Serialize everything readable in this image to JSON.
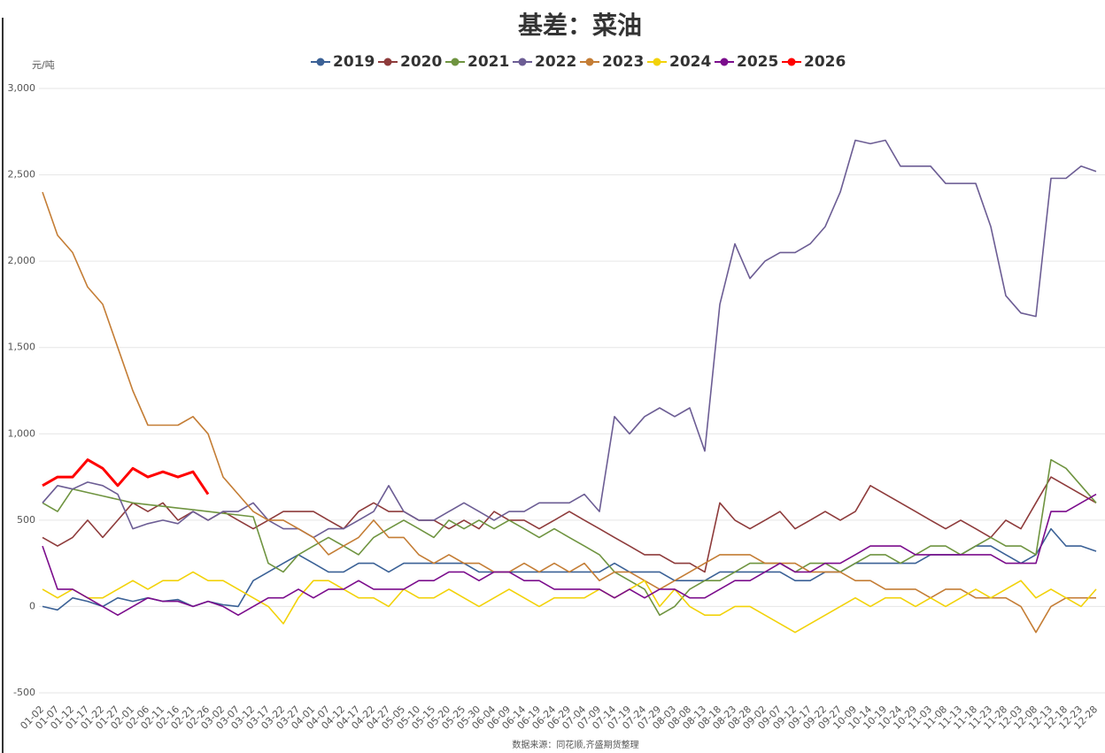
{
  "chart_data": {
    "type": "line",
    "title": "基差：菜油",
    "y_label": "元/吨",
    "source": "数据来源：同花顺,齐盛期货整理",
    "categories": [
      "01-02",
      "01-07",
      "01-12",
      "01-17",
      "01-22",
      "01-27",
      "02-01",
      "02-06",
      "02-11",
      "02-16",
      "02-21",
      "02-26",
      "03-02",
      "03-07",
      "03-12",
      "03-17",
      "03-22",
      "03-27",
      "04-01",
      "04-07",
      "04-12",
      "04-17",
      "04-22",
      "04-27",
      "05-05",
      "05-10",
      "05-15",
      "05-20",
      "05-25",
      "05-30",
      "06-04",
      "06-09",
      "06-14",
      "06-19",
      "06-24",
      "06-29",
      "07-04",
      "07-09",
      "07-14",
      "07-19",
      "07-24",
      "07-29",
      "08-03",
      "08-08",
      "08-13",
      "08-18",
      "08-23",
      "08-28",
      "09-02",
      "09-07",
      "09-12",
      "09-17",
      "09-22",
      "09-27",
      "10-09",
      "10-14",
      "10-19",
      "10-24",
      "10-29",
      "11-03",
      "11-08",
      "11-13",
      "11-18",
      "11-23",
      "11-28",
      "12-03",
      "12-08",
      "12-13",
      "12-18",
      "12-23",
      "12-28"
    ],
    "ylim": [
      -500,
      3000
    ],
    "yticks": [
      -500,
      0,
      500,
      {
        "value": 1000,
        "label": "1,000"
      },
      {
        "value": 1500,
        "label": "1,500"
      },
      {
        "value": 2000,
        "label": "2,000"
      },
      {
        "value": 2500,
        "label": "2,500"
      },
      {
        "value": 3000,
        "label": "3,000"
      }
    ],
    "grid": true,
    "legend": "top",
    "series": [
      {
        "name": "2019",
        "color": "#3b6196",
        "values": [
          0,
          -20,
          50,
          30,
          0,
          50,
          30,
          50,
          30,
          40,
          0,
          30,
          10,
          0,
          150,
          200,
          250,
          300,
          250,
          200,
          200,
          250,
          250,
          200,
          250,
          250,
          250,
          250,
          250,
          200,
          200,
          200,
          200,
          200,
          200,
          200,
          200,
          200,
          250,
          200,
          200,
          200,
          150,
          150,
          150,
          200,
          200,
          200,
          200,
          200,
          150,
          150,
          200,
          200,
          250,
          250,
          250,
          250,
          250,
          300,
          300,
          300,
          350,
          350,
          300,
          250,
          300,
          450,
          350,
          350,
          320
        ]
      },
      {
        "name": "2020",
        "color": "#8e3b3b",
        "values": [
          400,
          350,
          400,
          500,
          400,
          500,
          600,
          550,
          600,
          500,
          550,
          500,
          550,
          500,
          450,
          500,
          550,
          550,
          550,
          500,
          450,
          550,
          600,
          550,
          550,
          500,
          500,
          450,
          500,
          450,
          550,
          500,
          500,
          450,
          500,
          550,
          500,
          450,
          400,
          350,
          300,
          300,
          250,
          250,
          200,
          600,
          500,
          450,
          500,
          550,
          450,
          500,
          550,
          500,
          550,
          700,
          650,
          600,
          550,
          500,
          450,
          500,
          450,
          400,
          500,
          450,
          600,
          750,
          700,
          650,
          600
        ]
      },
      {
        "name": "2021",
        "color": "#6f9440",
        "values": [
          600,
          550,
          680,
          660,
          640,
          620,
          600,
          590,
          580,
          570,
          560,
          550,
          540,
          530,
          520,
          250,
          200,
          300,
          350,
          400,
          350,
          300,
          400,
          450,
          500,
          450,
          400,
          500,
          450,
          500,
          450,
          500,
          450,
          400,
          450,
          400,
          350,
          300,
          200,
          150,
          100,
          -50,
          0,
          100,
          150,
          150,
          200,
          250,
          250,
          250,
          200,
          250,
          250,
          200,
          250,
          300,
          300,
          250,
          300,
          350,
          350,
          300,
          350,
          400,
          350,
          350,
          300,
          850,
          800,
          700,
          600
        ]
      },
      {
        "name": "2022",
        "color": "#6c5d94",
        "values": [
          600,
          700,
          680,
          720,
          700,
          650,
          450,
          480,
          500,
          480,
          550,
          500,
          550,
          550,
          600,
          500,
          450,
          450,
          400,
          450,
          450,
          500,
          550,
          700,
          550,
          500,
          500,
          550,
          600,
          550,
          500,
          550,
          550,
          600,
          600,
          600,
          650,
          550,
          1100,
          1000,
          1100,
          1150,
          1100,
          1150,
          900,
          1750,
          2100,
          1900,
          2000,
          2050,
          2050,
          2100,
          2200,
          2400,
          2700,
          2680,
          2700,
          2550,
          2550,
          2550,
          2450,
          2450,
          2450,
          2200,
          1800,
          1700,
          1680,
          2480,
          2480,
          2550,
          2520
        ]
      },
      {
        "name": "2023",
        "color": "#c47d35",
        "values": [
          2400,
          2150,
          2050,
          1850,
          1750,
          1500,
          1250,
          1050,
          1050,
          1050,
          1100,
          1000,
          750,
          650,
          550,
          500,
          500,
          450,
          400,
          300,
          350,
          400,
          500,
          400,
          400,
          300,
          250,
          300,
          250,
          250,
          200,
          200,
          250,
          200,
          250,
          200,
          250,
          150,
          200,
          200,
          150,
          100,
          150,
          200,
          250,
          300,
          300,
          300,
          250,
          250,
          250,
          200,
          200,
          200,
          150,
          150,
          100,
          100,
          100,
          50,
          100,
          100,
          50,
          50,
          50,
          0,
          -150,
          0,
          50,
          50,
          50
        ]
      },
      {
        "name": "2024",
        "color": "#f2d20a",
        "values": [
          100,
          50,
          100,
          50,
          50,
          100,
          150,
          100,
          150,
          150,
          200,
          150,
          150,
          100,
          50,
          0,
          -100,
          50,
          150,
          150,
          100,
          50,
          50,
          0,
          100,
          50,
          50,
          100,
          50,
          0,
          50,
          100,
          50,
          0,
          50,
          50,
          50,
          100,
          50,
          100,
          150,
          0,
          100,
          0,
          -50,
          -50,
          0,
          0,
          -50,
          -100,
          -150,
          -100,
          -50,
          0,
          50,
          0,
          50,
          50,
          0,
          50,
          0,
          50,
          100,
          50,
          100,
          150,
          50,
          100,
          50,
          0,
          100
        ]
      },
      {
        "name": "2025",
        "color": "#7b0d8c",
        "values": [
          350,
          100,
          100,
          50,
          0,
          -50,
          0,
          50,
          30,
          30,
          0,
          30,
          0,
          -50,
          0,
          50,
          50,
          100,
          50,
          100,
          100,
          150,
          100,
          100,
          100,
          150,
          150,
          200,
          200,
          150,
          200,
          200,
          150,
          150,
          100,
          100,
          100,
          100,
          50,
          100,
          50,
          100,
          100,
          50,
          50,
          100,
          150,
          150,
          200,
          250,
          200,
          200,
          250,
          250,
          300,
          350,
          350,
          350,
          300,
          300,
          300,
          300,
          300,
          300,
          250,
          250,
          250,
          550,
          550,
          600,
          650
        ]
      },
      {
        "name": "2026",
        "color": "#ff0000",
        "values": [
          700,
          750,
          750,
          850,
          800,
          700,
          800,
          750,
          780,
          750,
          780,
          650,
          null,
          null,
          null,
          null,
          null,
          null,
          null,
          null,
          null,
          null,
          null,
          null,
          null,
          null,
          null,
          null,
          null,
          null,
          null,
          null,
          null,
          null,
          null,
          null,
          null,
          null,
          null,
          null,
          null,
          null,
          null,
          null,
          null,
          null,
          null,
          null,
          null,
          null,
          null,
          null,
          null,
          null,
          null,
          null,
          null,
          null,
          null,
          null,
          null,
          null,
          null,
          null,
          null,
          null,
          null,
          null,
          null,
          null,
          null
        ]
      }
    ]
  }
}
